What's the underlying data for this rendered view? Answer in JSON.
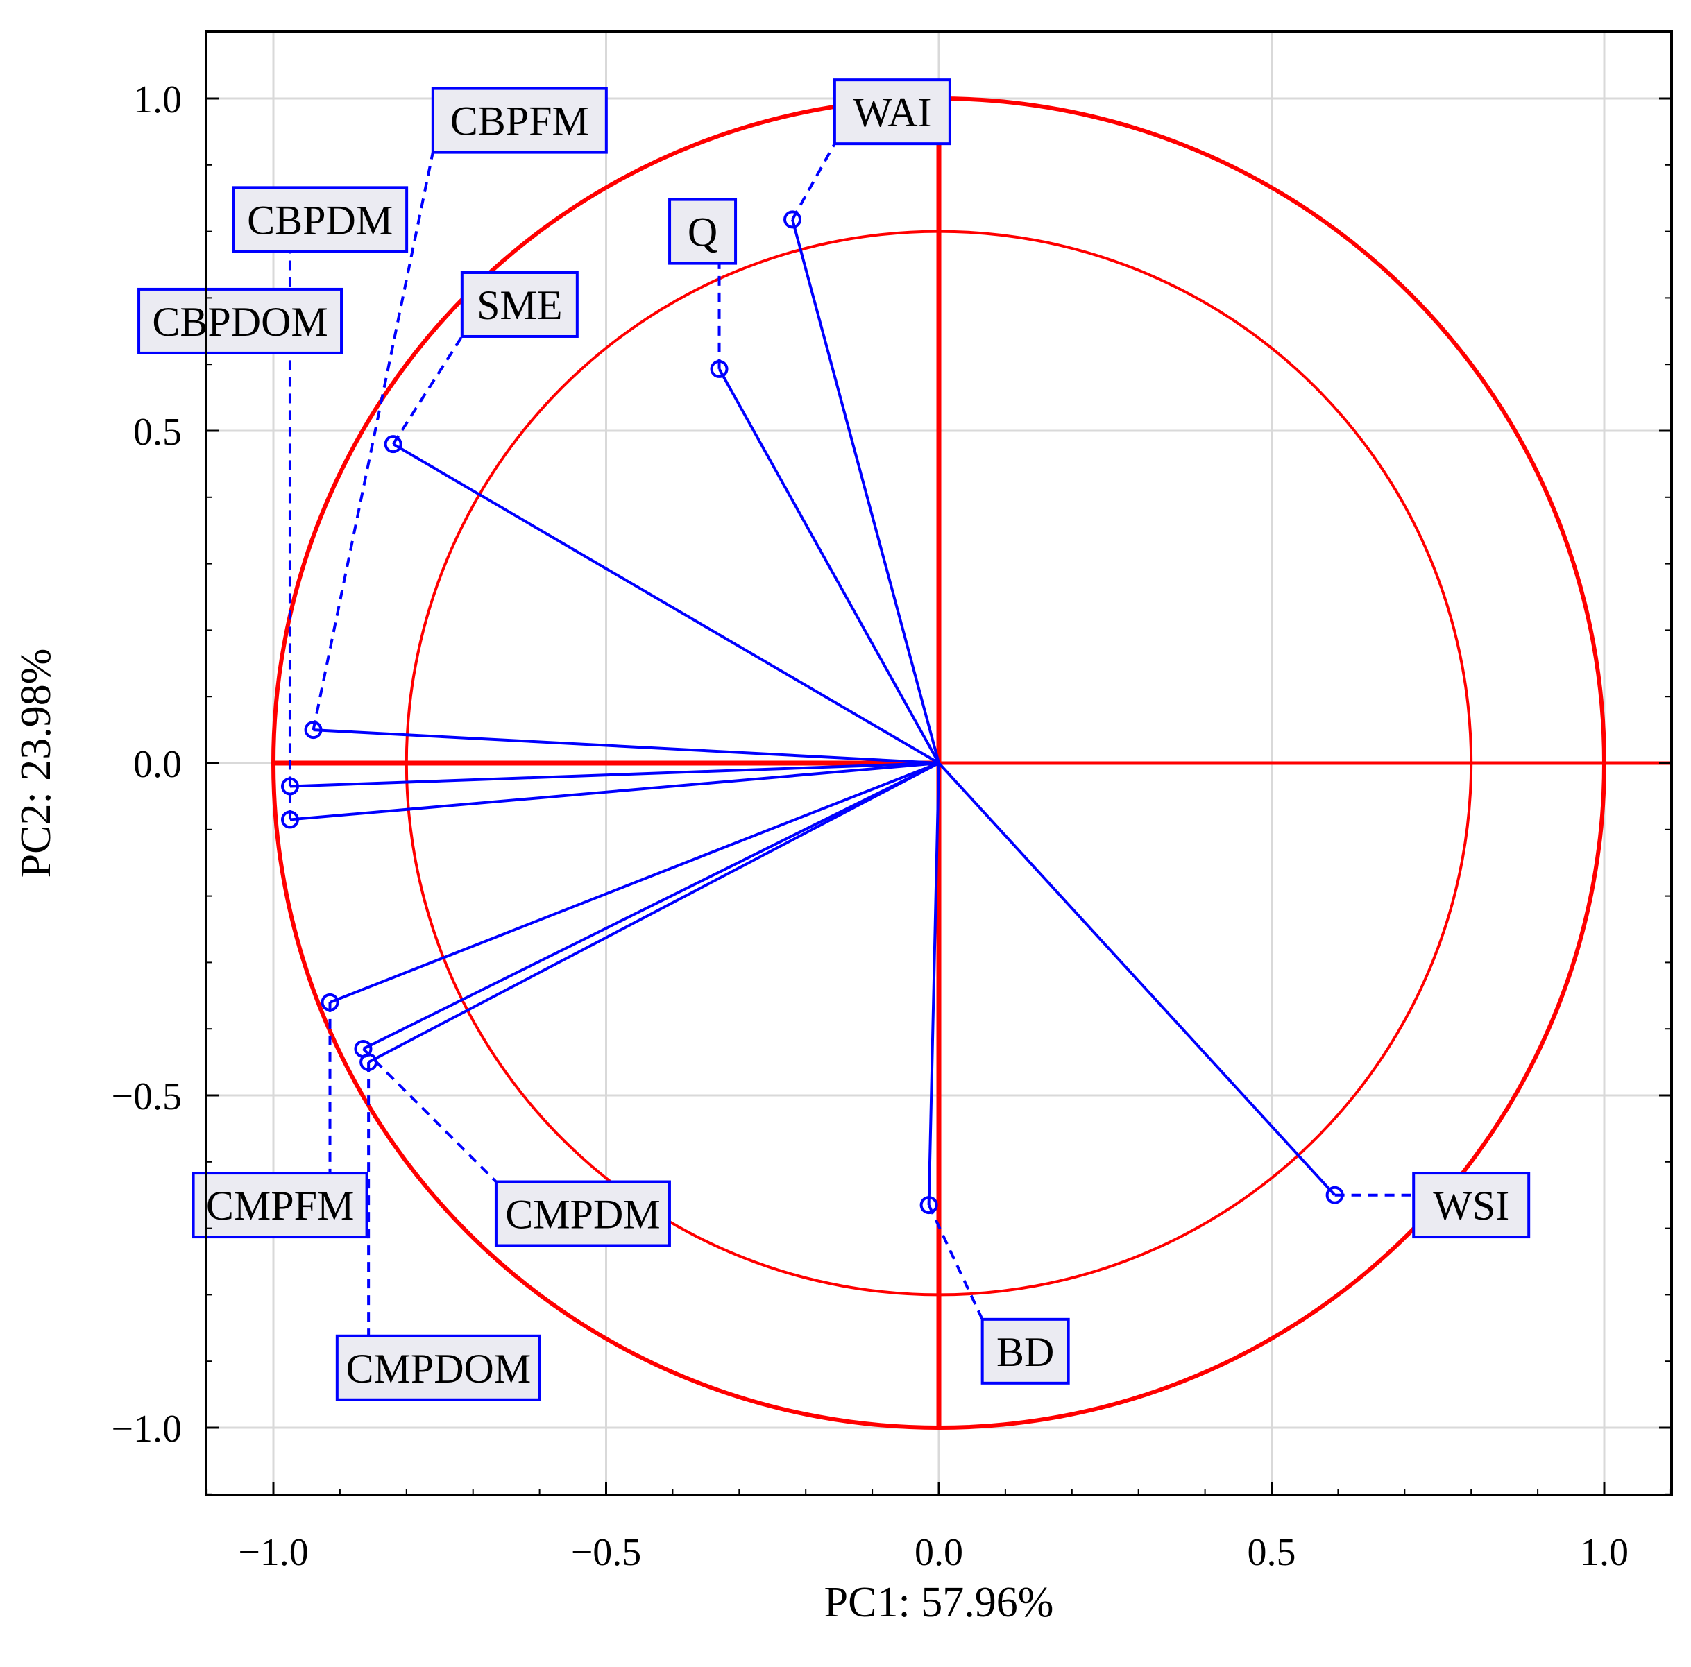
{
  "chart_data": {
    "type": "scatter",
    "subtype": "pca-loadings-circle",
    "xlabel": "PC1: 57.96%",
    "ylabel": "PC2: 23.98%",
    "xlim": [
      -1.1,
      1.1
    ],
    "ylim": [
      -1.1,
      1.1
    ],
    "xticks": [
      -1.0,
      -0.5,
      0.0,
      0.5,
      1.0
    ],
    "xtick_labels": [
      "−1.0",
      "−0.5",
      "0.0",
      "0.5",
      "1.0"
    ],
    "yticks": [
      1.0,
      0.5,
      0.0,
      -0.5,
      -1.0
    ],
    "ytick_labels": [
      "1.0",
      "0.5",
      "0.0",
      "−0.5",
      "−1.0"
    ],
    "grid": true,
    "circles": [
      {
        "name": "unit-circle",
        "radius": 1.0,
        "color": "#ff0000"
      },
      {
        "name": "inner-circle",
        "radius": 0.8,
        "color": "#ff0000"
      }
    ],
    "colors": {
      "vector": "#0000ff",
      "circle": "#ff0000",
      "label_fill": "#ebebf2",
      "label_border": "#0000ff"
    },
    "variables": [
      {
        "label": "WAI",
        "x": -0.22,
        "y": 0.818,
        "label_x": -0.07,
        "label_y": 0.98
      },
      {
        "label": "Q",
        "x": -0.33,
        "y": 0.593,
        "label_x": -0.355,
        "label_y": 0.8
      },
      {
        "label": "SME",
        "x": -0.82,
        "y": 0.48,
        "label_x": -0.63,
        "label_y": 0.69
      },
      {
        "label": "CBPFM",
        "x": -0.94,
        "y": 0.05,
        "label_x": -0.63,
        "label_y": 0.967
      },
      {
        "label": "CBPDM",
        "x": -0.975,
        "y": -0.035,
        "label_x": -0.93,
        "label_y": 0.818
      },
      {
        "label": "CBPDOM",
        "x": -0.975,
        "y": -0.085,
        "label_x": -1.05,
        "label_y": 0.665
      },
      {
        "label": "CMPFM",
        "x": -0.915,
        "y": -0.36,
        "label_x": -0.99,
        "label_y": -0.665
      },
      {
        "label": "CMPDM",
        "x": -0.865,
        "y": -0.43,
        "label_x": -0.535,
        "label_y": -0.678
      },
      {
        "label": "CMPDOM",
        "x": -0.857,
        "y": -0.45,
        "label_x": -0.752,
        "label_y": -0.91
      },
      {
        "label": "BD",
        "x": -0.015,
        "y": -0.665,
        "label_x": 0.13,
        "label_y": -0.885
      },
      {
        "label": "WSI",
        "x": 0.595,
        "y": -0.65,
        "label_x": 0.8,
        "label_y": -0.665
      }
    ]
  }
}
